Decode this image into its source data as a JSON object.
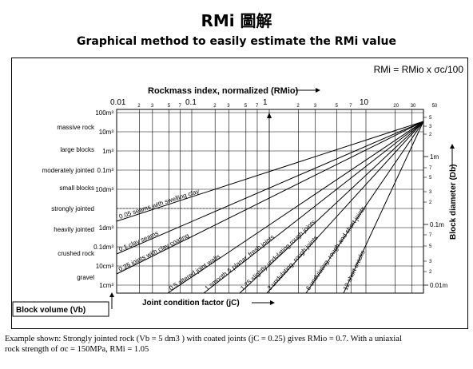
{
  "title": "RMi 圖解",
  "subtitle": "Graphical method to easily estimate the RMi value",
  "formula": "RMi = RMio x σc/100",
  "top_axis": {
    "label": "Rockmass index, normalized (RMio)",
    "major": [
      "0.01",
      "0.1",
      "1",
      "10"
    ],
    "minor": [
      "2",
      "3",
      "5",
      "7",
      "2",
      "3",
      "5",
      "7",
      "2",
      "3",
      "5",
      "7",
      "20",
      "30",
      "50"
    ]
  },
  "left_axis": {
    "label": "Block volume (Vb)",
    "volume_ticks": [
      "100m³",
      "10m³",
      "1m³",
      "0.1m³",
      "10dm³",
      "1dm³",
      "0.1dm³",
      "10cm³",
      "1cm³"
    ],
    "categories": [
      "massive rock",
      "large blocks",
      "moderately jointed",
      "small blocks",
      "strongly jointed",
      "heavily jointed",
      "crushed rock",
      "gravel"
    ]
  },
  "right_axis": {
    "label": "Block diameter (Db)",
    "major": [
      "1m",
      "0.1m",
      "0.01m"
    ],
    "minor": [
      "5",
      "3",
      "2",
      "7",
      "5",
      "3",
      "2",
      "7",
      "5",
      "3",
      "2"
    ]
  },
  "bottom_axis": {
    "label": "Joint condition factor (jC)"
  },
  "lines": [
    {
      "value": "0.05",
      "label": "seams with swelling clay"
    },
    {
      "value": "0.1",
      "label": "clay seams"
    },
    {
      "value": "0.25",
      "label": "joints with clay coating"
    },
    {
      "value": "0.5",
      "label": "altered joint walls"
    },
    {
      "value": "1",
      "label": "smooth & planar, fresh joints"
    },
    {
      "value": "1.75",
      "label": "slightly undulating rough joints"
    },
    {
      "value": "3",
      "label": "undulating, rough joints"
    },
    {
      "value": "6",
      "label": "undulating, rough and short joints"
    },
    {
      "value": "12",
      "label": "short cracks"
    }
  ],
  "caption": {
    "line1": "Example shown: Strongly jointed rock (Vb = 5 dm3 ) with coated joints (jC = 0.25) gives RMio = 0.7. With a uniaxial",
    "line2": "rock strength of σc = 150MPa, RMi = 1.05"
  }
}
